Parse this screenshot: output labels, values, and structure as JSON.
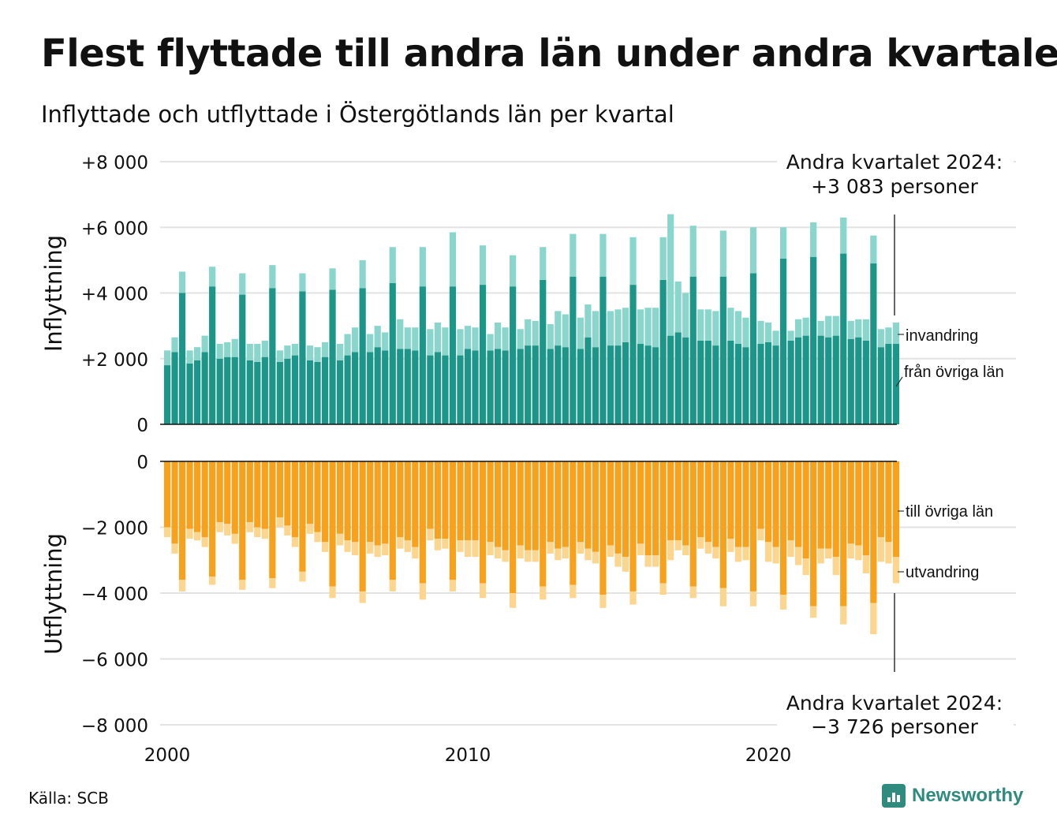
{
  "title": "Flest flyttade till andra län under andra kvartalet",
  "subtitle": "Inflyttade och utflyttade i Östergötlands län per kvartal",
  "source": "Källa: SCB",
  "brand": "Newsworthy",
  "colors": {
    "inflow_domestic": "#1b9688",
    "inflow_immigration": "#8ad6cc",
    "outflow_domestic": "#f7a11c",
    "outflow_emigration": "#fcd58e",
    "grid": "#e3e3e3",
    "brand": "#2e8b7d"
  },
  "chart_data": {
    "type": "bar",
    "stacked": true,
    "categories_start": "2000 Q1",
    "categories_end": "2024 Q2",
    "x_ticks": [
      "2000",
      "2010",
      "2020"
    ],
    "y_ticks": [
      "+8 000",
      "+6 000",
      "+4 000",
      "+2 000",
      "0",
      "0",
      "−2 000",
      "−4 000",
      "−6 000",
      "−8 000"
    ],
    "ylabel_top": "Inflyttning",
    "ylabel_bottom": "Utflyttning",
    "panels": [
      {
        "name": "Inflyttning",
        "ylim": [
          0,
          8000
        ],
        "series": [
          {
            "name": "från övriga län",
            "values": [
              1800,
              2200,
              4000,
              1850,
              1950,
              2200,
              4200,
              2000,
              2050,
              2050,
              3950,
              1950,
              1900,
              2050,
              4150,
              1900,
              2000,
              2100,
              4050,
              1950,
              1900,
              2050,
              4100,
              1950,
              2100,
              2200,
              4150,
              2200,
              2350,
              2250,
              4300,
              2300,
              2300,
              2250,
              4200,
              2100,
              2200,
              2100,
              4200,
              2100,
              2300,
              2250,
              4250,
              2250,
              2300,
              2250,
              4200,
              2300,
              2400,
              2400,
              4400,
              2300,
              2400,
              2350,
              4500,
              2300,
              2650,
              2350,
              4500,
              2400,
              2400,
              2500,
              4250,
              2450,
              2400,
              2350,
              4400,
              2700,
              2800,
              2650,
              4500,
              2550,
              2550,
              2400,
              4500,
              2550,
              2450,
              2350,
              4600,
              2450,
              2500,
              2400,
              5050,
              2550,
              2650,
              2700,
              5100,
              2700,
              2650,
              2700,
              5200,
              2600,
              2650,
              2550,
              4900,
              2350,
              2450,
              2450
            ]
          },
          {
            "name": "invandring",
            "values": [
              450,
              450,
              650,
              400,
              400,
              500,
              600,
              450,
              450,
              550,
              650,
              500,
              550,
              500,
              700,
              350,
              400,
              350,
              550,
              450,
              450,
              450,
              650,
              500,
              650,
              750,
              850,
              550,
              650,
              550,
              1100,
              900,
              650,
              700,
              1200,
              800,
              900,
              850,
              1650,
              800,
              700,
              700,
              1200,
              500,
              800,
              700,
              950,
              600,
              800,
              750,
              1000,
              750,
              1050,
              1000,
              1300,
              950,
              1000,
              1100,
              1300,
              1050,
              1100,
              1050,
              1450,
              1050,
              1150,
              1200,
              1300,
              3700,
              1550,
              1350,
              1550,
              950,
              950,
              1050,
              1400,
              1000,
              1000,
              900,
              1400,
              700,
              600,
              450,
              950,
              300,
              550,
              550,
              1050,
              450,
              650,
              600,
              1100,
              550,
              550,
              650,
              850,
              550,
              500,
              650
            ]
          }
        ]
      },
      {
        "name": "Utflyttning",
        "ylim": [
          -8000,
          0
        ],
        "series": [
          {
            "name": "till övriga län",
            "values": [
              -2000,
              -2500,
              -3600,
              -2050,
              -2150,
              -2300,
              -3500,
              -1850,
              -1900,
              -2200,
              -3600,
              -1850,
              -2000,
              -2050,
              -3550,
              -1700,
              -1950,
              -2300,
              -3350,
              -1900,
              -2150,
              -2450,
              -3800,
              -2200,
              -2400,
              -2450,
              -3950,
              -2450,
              -2550,
              -2500,
              -3600,
              -2300,
              -2400,
              -2600,
              -3700,
              -2050,
              -2350,
              -2350,
              -3600,
              -2400,
              -2400,
              -2400,
              -3700,
              -2450,
              -2600,
              -2700,
              -4000,
              -2550,
              -2700,
              -2700,
              -3800,
              -2450,
              -2650,
              -2600,
              -3750,
              -2450,
              -2650,
              -2750,
              -4050,
              -2550,
              -2800,
              -2900,
              -3950,
              -2500,
              -2850,
              -2850,
              -3700,
              -2400,
              -2400,
              -2550,
              -3800,
              -2300,
              -2450,
              -2600,
              -3850,
              -2350,
              -2600,
              -2600,
              -3950,
              -2050,
              -2450,
              -2600,
              -4050,
              -2400,
              -2600,
              -2950,
              -4400,
              -2650,
              -2650,
              -2900,
              -4400,
              -2500,
              -2550,
              -2850,
              -4300,
              -2300,
              -2450,
              -2900
            ]
          },
          {
            "name": "utvandring",
            "values": [
              -300,
              -300,
              -350,
              -300,
              -250,
              -300,
              -250,
              -300,
              -350,
              -300,
              -300,
              -300,
              -300,
              -300,
              -300,
              -300,
              -300,
              -300,
              -300,
              -300,
              -300,
              -300,
              -350,
              -350,
              -350,
              -400,
              -350,
              -350,
              -350,
              -350,
              -350,
              -350,
              -350,
              -350,
              -500,
              -350,
              -350,
              -300,
              -350,
              -350,
              -500,
              -500,
              -450,
              -400,
              -350,
              -350,
              -450,
              -400,
              -350,
              -350,
              -400,
              -350,
              -350,
              -350,
              -400,
              -350,
              -350,
              -350,
              -400,
              -350,
              -400,
              -450,
              -400,
              -350,
              -350,
              -350,
              -350,
              -600,
              -300,
              -300,
              -350,
              -350,
              -350,
              -350,
              -550,
              -400,
              -450,
              -400,
              -450,
              -350,
              -600,
              -500,
              -450,
              -500,
              -550,
              -500,
              -350,
              -450,
              -300,
              -550,
              -550,
              -450,
              -450,
              -550,
              -950,
              -750,
              -650,
              -800
            ]
          }
        ]
      }
    ],
    "series_labels": [
      "invandring",
      "från övriga län",
      "till övriga län",
      "utvandring"
    ],
    "annotation_top": [
      "Andra kvartalet 2024:",
      "+3 083 personer"
    ],
    "annotation_bottom": [
      "Andra kvartalet 2024:",
      "−3 726 personer"
    ]
  }
}
